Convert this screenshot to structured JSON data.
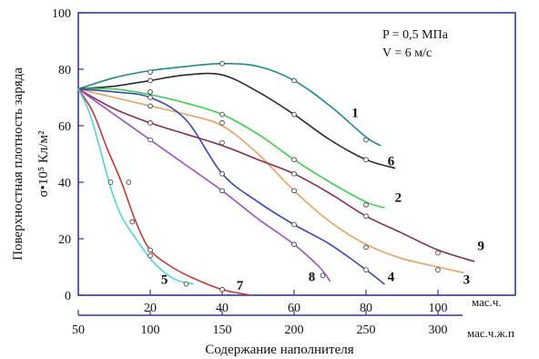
{
  "chart_data": {
    "type": "line",
    "title": "",
    "ylabel": "Поверхностная плотность заряда",
    "ylabel_symbol": "σ•10⁵ Кл/м²",
    "xlabel": "Содержание наполнителя",
    "x_unit_top": "мас.ч.",
    "x_unit_bottom": "мас.ч.ж.п",
    "ylim": [
      0,
      100
    ],
    "xlim_top": [
      0,
      110
    ],
    "xticks_top": [
      20,
      40,
      60,
      80,
      100
    ],
    "xticks_bottom": [
      50,
      100,
      150,
      200,
      250,
      300
    ],
    "yticks": [
      0,
      20,
      40,
      60,
      80,
      100
    ],
    "annotations": [
      "P = 0,5 МПа",
      "V = 6 м/с"
    ],
    "grid": false,
    "series": [
      {
        "name": "1",
        "color": "#1a8a8f",
        "points": [
          [
            0,
            73
          ],
          [
            10,
            77
          ],
          [
            20,
            79.5
          ],
          [
            30,
            81
          ],
          [
            40,
            82
          ],
          [
            50,
            81
          ],
          [
            60,
            76
          ],
          [
            70,
            67
          ],
          [
            80,
            56
          ],
          [
            84,
            53
          ]
        ],
        "markers": [
          [
            20,
            79
          ],
          [
            40,
            82
          ],
          [
            60,
            76
          ],
          [
            80,
            55
          ]
        ]
      },
      {
        "name": "6",
        "color": "#2b2b2b",
        "points": [
          [
            0,
            73
          ],
          [
            10,
            74
          ],
          [
            20,
            76
          ],
          [
            30,
            78
          ],
          [
            40,
            78
          ],
          [
            50,
            72
          ],
          [
            60,
            64
          ],
          [
            70,
            55
          ],
          [
            80,
            48
          ],
          [
            88,
            45
          ]
        ],
        "markers": [
          [
            20,
            76
          ],
          [
            60,
            64
          ],
          [
            80,
            48
          ]
        ]
      },
      {
        "name": "2",
        "color": "#3ccf4a",
        "points": [
          [
            0,
            73
          ],
          [
            10,
            73
          ],
          [
            20,
            71
          ],
          [
            30,
            68
          ],
          [
            40,
            64
          ],
          [
            50,
            57
          ],
          [
            60,
            48
          ],
          [
            70,
            40
          ],
          [
            80,
            33
          ],
          [
            85,
            31
          ]
        ],
        "markers": [
          [
            20,
            72
          ],
          [
            40,
            64
          ],
          [
            60,
            48
          ],
          [
            80,
            32
          ]
        ]
      },
      {
        "name": "3",
        "color": "#e9a159",
        "points": [
          [
            0,
            73
          ],
          [
            10,
            70
          ],
          [
            20,
            67
          ],
          [
            30,
            64
          ],
          [
            40,
            60
          ],
          [
            50,
            50
          ],
          [
            60,
            37
          ],
          [
            70,
            26
          ],
          [
            80,
            18
          ],
          [
            90,
            13
          ],
          [
            100,
            10
          ],
          [
            107,
            8
          ]
        ],
        "markers": [
          [
            20,
            67
          ],
          [
            40,
            61
          ],
          [
            60,
            37
          ],
          [
            80,
            17
          ],
          [
            100,
            9
          ]
        ]
      },
      {
        "name": "9",
        "color": "#8c2b4a",
        "points": [
          [
            0,
            73
          ],
          [
            10,
            66
          ],
          [
            20,
            61
          ],
          [
            30,
            57
          ],
          [
            40,
            53
          ],
          [
            50,
            48
          ],
          [
            60,
            43
          ],
          [
            70,
            36
          ],
          [
            80,
            28
          ],
          [
            90,
            22
          ],
          [
            100,
            16
          ],
          [
            110,
            12
          ]
        ],
        "markers": [
          [
            20,
            61
          ],
          [
            40,
            54
          ],
          [
            60,
            43
          ],
          [
            80,
            28
          ],
          [
            100,
            15
          ]
        ]
      },
      {
        "name": "4",
        "color": "#3a46b8",
        "points": [
          [
            0,
            73
          ],
          [
            10,
            72
          ],
          [
            20,
            70
          ],
          [
            30,
            62
          ],
          [
            40,
            43
          ],
          [
            50,
            33
          ],
          [
            60,
            25
          ],
          [
            70,
            18
          ],
          [
            80,
            9
          ],
          [
            85,
            4
          ]
        ],
        "markers": [
          [
            20,
            70
          ],
          [
            40,
            43
          ],
          [
            60,
            25
          ],
          [
            80,
            9
          ]
        ]
      },
      {
        "name": "8",
        "color": "#9b4fc4",
        "points": [
          [
            0,
            73
          ],
          [
            10,
            64
          ],
          [
            20,
            55
          ],
          [
            30,
            46
          ],
          [
            40,
            37
          ],
          [
            50,
            27
          ],
          [
            60,
            18
          ],
          [
            67,
            10
          ],
          [
            70,
            5
          ]
        ],
        "markers": [
          [
            20,
            55
          ],
          [
            40,
            37
          ],
          [
            60,
            18
          ],
          [
            68,
            7
          ]
        ]
      },
      {
        "name": "7",
        "color": "#c33a33",
        "points": [
          [
            0,
            73
          ],
          [
            4,
            65
          ],
          [
            8,
            52
          ],
          [
            12,
            40
          ],
          [
            16,
            26
          ],
          [
            20,
            16
          ],
          [
            26,
            10
          ],
          [
            32,
            6
          ],
          [
            40,
            2
          ],
          [
            48,
            0
          ]
        ],
        "markers": [
          [
            14,
            40
          ],
          [
            20,
            16
          ],
          [
            40,
            2
          ]
        ]
      },
      {
        "name": "5",
        "color": "#4fd6d6",
        "points": [
          [
            0,
            73
          ],
          [
            3,
            65
          ],
          [
            6,
            52
          ],
          [
            9,
            38
          ],
          [
            12,
            28
          ],
          [
            16,
            20
          ],
          [
            20,
            13
          ],
          [
            24,
            8
          ],
          [
            28,
            5
          ],
          [
            32,
            4
          ]
        ],
        "markers": [
          [
            9,
            40
          ],
          [
            15,
            26
          ],
          [
            20,
            14
          ],
          [
            30,
            4
          ]
        ]
      }
    ],
    "label_positions": [
      {
        "name": "1",
        "x": 76,
        "y": 63
      },
      {
        "name": "6",
        "x": 86,
        "y": 46
      },
      {
        "name": "2",
        "x": 88,
        "y": 33
      },
      {
        "name": "3",
        "x": 107,
        "y": 4
      },
      {
        "name": "9",
        "x": 111,
        "y": 16
      },
      {
        "name": "4",
        "x": 86,
        "y": 5
      },
      {
        "name": "8",
        "x": 64,
        "y": 5
      },
      {
        "name": "7",
        "x": 44,
        "y": 2
      },
      {
        "name": "5",
        "x": 23,
        "y": 4
      }
    ]
  }
}
